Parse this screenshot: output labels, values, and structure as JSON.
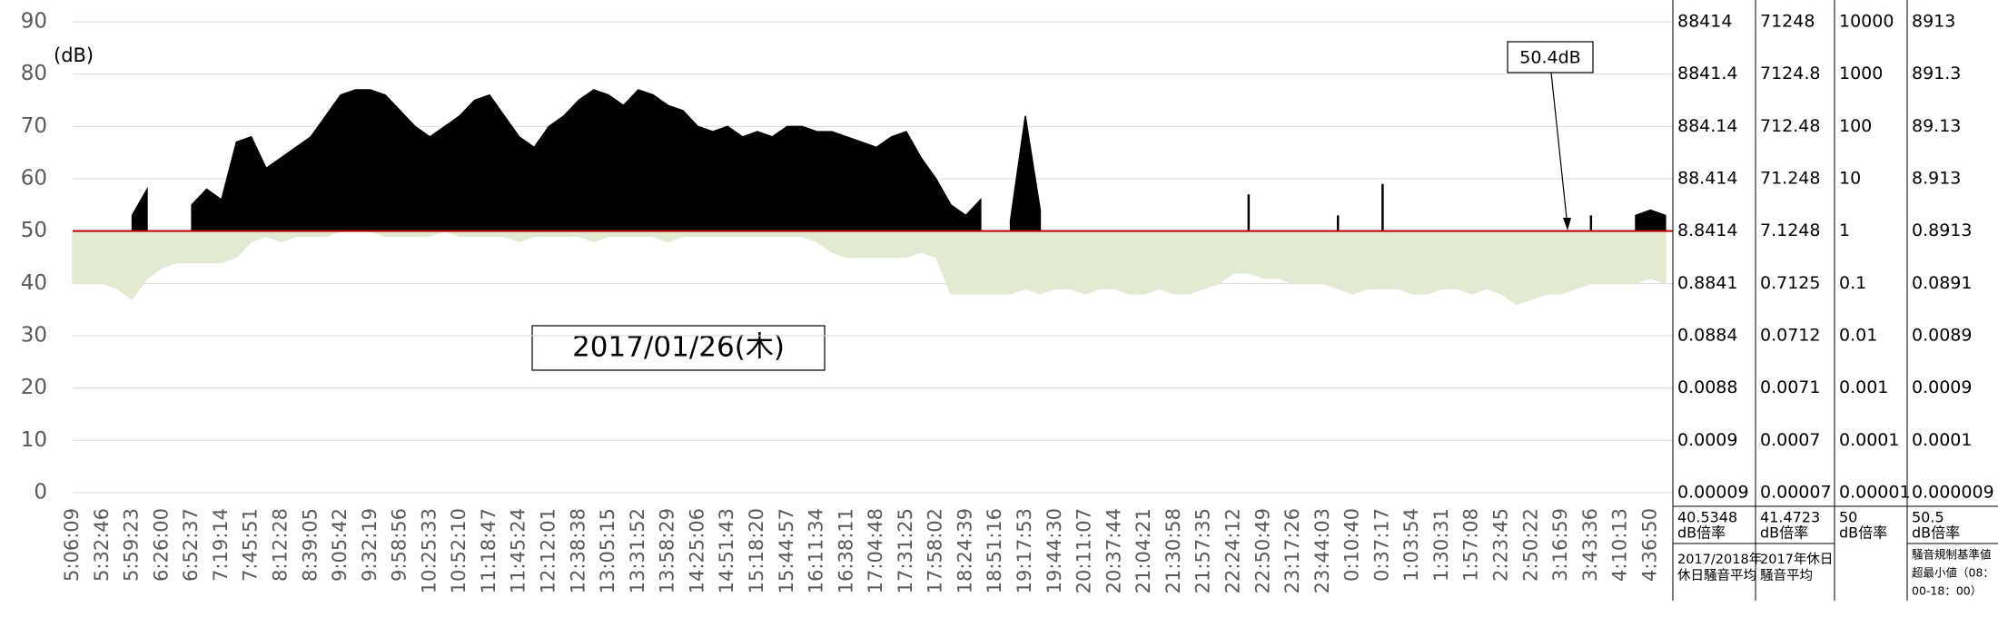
{
  "chart_data": {
    "type": "line",
    "y_unit": "(dB)",
    "callout": "50.4dB",
    "date_label": "2017/01/26(木)",
    "categories": [
      "5:06:09",
      null,
      "5:32:46",
      null,
      "5:59:23",
      null,
      "6:26:00",
      null,
      "6:52:37",
      null,
      "7:19:14",
      null,
      "7:45:51",
      null,
      "8:12:28",
      null,
      "8:39:05",
      null,
      "9:05:42",
      null,
      "9:32:19",
      null,
      "9:58:56",
      null,
      "10:25:33",
      null,
      "10:52:10",
      null,
      "11:18:47",
      null,
      "11:45:24",
      null,
      "12:12:01",
      null,
      "12:38:38",
      null,
      "13:05:15",
      null,
      "13:31:52",
      null,
      "13:58:29",
      null,
      "14:25:06",
      null,
      "14:51:43",
      null,
      "15:18:20",
      null,
      "15:44:57",
      null,
      "16:11:34",
      null,
      "16:38:11",
      null,
      "17:04:48",
      null,
      "17:31:25",
      null,
      "17:58:02",
      null,
      "18:24:39",
      null,
      "18:51:16",
      null,
      "19:17:53",
      null,
      "19:44:30",
      null,
      "20:11:07",
      null,
      "20:37:44",
      null,
      "21:04:21",
      null,
      "21:30:58",
      null,
      "21:57:35",
      null,
      "22:24:12",
      null,
      "22:50:49",
      null,
      "23:17:26",
      null,
      "23:44:03",
      null,
      "0:10:40",
      null,
      "0:37:17",
      null,
      "1:03:54",
      null,
      "1:30:31",
      null,
      "1:57:08",
      null,
      "2:23:45",
      null,
      "2:50:22",
      null,
      "3:16:59",
      null,
      "3:43:36",
      null,
      "4:10:13",
      null,
      "4:36:50",
      null
    ],
    "series": [
      {
        "color": "#e2ead3",
        "values": [
          40,
          40,
          40,
          39,
          37,
          41,
          43,
          44,
          44,
          44,
          44,
          45,
          48,
          49,
          48,
          49,
          49,
          49,
          50,
          50,
          50,
          49,
          49,
          49,
          49,
          50,
          49,
          49,
          49,
          49,
          48,
          49,
          49,
          49,
          49,
          48,
          49,
          49,
          49,
          49,
          48,
          49,
          49,
          49,
          49,
          49,
          49,
          49,
          49,
          49,
          48,
          46,
          45,
          45,
          45,
          45,
          45,
          46,
          45,
          38,
          38,
          38,
          38,
          38,
          39,
          38,
          39,
          39,
          38,
          39,
          39,
          38,
          38,
          39,
          38,
          38,
          39,
          40,
          42,
          42,
          41,
          41,
          40,
          40,
          40,
          39,
          38,
          39,
          39,
          39,
          38,
          38,
          39,
          39,
          38,
          39,
          38,
          36,
          37,
          38,
          38,
          39,
          40,
          40,
          40,
          40,
          41,
          40
        ]
      },
      {
        "color": "#000000",
        "values": [
          null,
          null,
          null,
          null,
          53,
          58,
          null,
          null,
          55,
          58,
          56,
          67,
          68,
          62,
          64,
          66,
          68,
          72,
          76,
          77,
          77,
          76,
          73,
          70,
          68,
          70,
          72,
          75,
          76,
          72,
          68,
          66,
          70,
          72,
          75,
          77,
          76,
          74,
          77,
          76,
          74,
          73,
          70,
          69,
          70,
          68,
          69,
          68,
          70,
          70,
          69,
          69,
          68,
          67,
          66,
          68,
          69,
          64,
          60,
          55,
          53,
          56,
          null,
          52,
          72,
          54,
          null,
          null,
          null,
          null,
          null,
          null,
          null,
          null,
          null,
          null,
          null,
          null,
          null,
          57,
          null,
          null,
          null,
          null,
          null,
          53,
          null,
          null,
          59,
          null,
          null,
          null,
          null,
          null,
          null,
          null,
          null,
          null,
          null,
          null,
          null,
          null,
          53,
          null,
          null,
          53,
          54,
          53
        ]
      }
    ],
    "hline": {
      "value": 50,
      "color": "#c00000"
    },
    "ylim": [
      0,
      90
    ],
    "yticks": [
      0,
      10,
      20,
      30,
      40,
      50,
      60,
      70,
      80,
      90
    ],
    "grid": true,
    "right_columns": [
      {
        "tick_labels": [
          9e-05,
          0.0009,
          0.0088,
          0.0884,
          0.8841,
          8.8414,
          88.414,
          884.14,
          8841.4,
          88414
        ],
        "value": 40.5348,
        "unit": "dB倍率",
        "note": [
          "2017/2018年",
          "休日騒音平均"
        ]
      },
      {
        "tick_labels": [
          7e-05,
          0.0007,
          0.0071,
          0.0712,
          0.7125,
          7.1248,
          71.248,
          712.48,
          7124.8,
          71248
        ],
        "value": 41.4723,
        "unit": "dB倍率",
        "note": [
          "2017年休日",
          "騒音平均"
        ]
      },
      {
        "tick_labels": [
          1e-05,
          0.0001,
          0.001,
          0.01,
          0.1,
          1,
          10,
          100,
          1000,
          10000
        ],
        "value": 50,
        "unit": "dB倍率"
      },
      {
        "tick_labels": [
          9e-06,
          0.0001,
          0.0009,
          0.0089,
          0.0891,
          0.8913,
          8.913,
          89.13,
          891.3,
          8913
        ],
        "value": 50.5,
        "unit": "dB倍率",
        "note": [
          "騒音規制基準値",
          "超最小値（08：",
          "00-18：00）"
        ]
      }
    ]
  }
}
